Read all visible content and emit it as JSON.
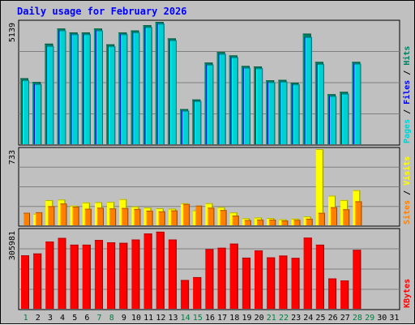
{
  "chart_data": {
    "type": "bar",
    "title": "Daily usage for February 2026",
    "x": [
      "1",
      "2",
      "3",
      "4",
      "5",
      "6",
      "7",
      "8",
      "9",
      "10",
      "11",
      "12",
      "13",
      "14",
      "15",
      "16",
      "17",
      "18",
      "19",
      "20",
      "21",
      "22",
      "23",
      "24",
      "25",
      "26",
      "27",
      "28",
      "29",
      "30",
      "31"
    ],
    "weekend_days": [
      "1",
      "7",
      "8",
      "14",
      "15",
      "21",
      "22",
      "28",
      "29"
    ],
    "panels": [
      {
        "name": "hits-files-pages",
        "max_label": "5139",
        "ymax": 5139,
        "ylabel_parts": [
          {
            "text": "Pages",
            "color": "#00d0d0"
          },
          {
            "text": " / ",
            "color": "#000000"
          },
          {
            "text": "Files",
            "color": "#0000ff"
          },
          {
            "text": " / ",
            "color": "#000000"
          },
          {
            "text": "Hits",
            "color": "#008060"
          }
        ],
        "series": [
          {
            "name": "Hits",
            "color": "#008060",
            "values": [
              2790,
              2630,
              4230,
              4860,
              4700,
              4700,
              4860,
              4200,
              4700,
              4780,
              5000,
              5139,
              4450,
              1500,
              1900,
              3440,
              3880,
              3740,
              3300,
              3280,
              2700,
              2720,
              2600,
              4650,
              3470,
              2120,
              2220,
              3470,
              0,
              0,
              0
            ]
          },
          {
            "name": "Files",
            "color": "#0000ff",
            "values": [
              2700,
              2540,
              4130,
              4780,
              4620,
              4620,
              4780,
              4120,
              4620,
              4700,
              4920,
              5060,
              4370,
              1430,
              1830,
              3350,
              3800,
              3660,
              3220,
              3200,
              2620,
              2640,
              2530,
              4500,
              3380,
              2040,
              2140,
              3390,
              0,
              0,
              0
            ]
          },
          {
            "name": "Pages",
            "color": "#00d0d0",
            "values": [
              2700,
              2540,
              4130,
              4780,
              4620,
              4620,
              4780,
              4120,
              4620,
              4700,
              4920,
              5060,
              4370,
              1430,
              1830,
              3350,
              3800,
              3660,
              3220,
              3200,
              2620,
              2640,
              2530,
              4500,
              3380,
              2040,
              2140,
              3390,
              0,
              0,
              0
            ]
          }
        ]
      },
      {
        "name": "visits-sites",
        "max_label": "733",
        "ymax": 733,
        "ylabel_parts": [
          {
            "text": "Sites",
            "color": "#ff8000"
          },
          {
            "text": " / ",
            "color": "#000000"
          },
          {
            "text": "Visits",
            "color": "#ffff00"
          }
        ],
        "series": [
          {
            "name": "Visits",
            "color": "#ffff00",
            "values": [
              0,
              118,
              247,
              253,
              195,
              225,
              228,
              230,
              257,
              187,
              177,
              170,
              166,
              218,
              150,
              218,
              180,
              130,
              75,
              82,
              77,
              65,
              71,
              93,
              733,
              290,
              248,
              342,
              0,
              0,
              0
            ]
          },
          {
            "name": "Sites",
            "color": "#ff8000",
            "values": [
              127,
              132,
              190,
              215,
              185,
              165,
              175,
              168,
              172,
              163,
              147,
              140,
              149,
              210,
              195,
              175,
              153,
              100,
              58,
              62,
              62,
              53,
              59,
              70,
              126,
              180,
              160,
              236,
              0,
              0,
              0
            ]
          }
        ]
      },
      {
        "name": "kbytes",
        "max_label": "305981",
        "ymax": 305981,
        "ylabel_parts": [
          {
            "text": "KBytes",
            "color": "#ff0000"
          }
        ],
        "series": [
          {
            "name": "KBytes",
            "color": "#ff0000",
            "values": [
              209000,
              216000,
              262000,
              276000,
              250000,
              250000,
              268000,
              259000,
              257000,
              270000,
              293000,
              300000,
              270000,
              114000,
              125000,
              233000,
              238000,
              254000,
              200000,
              228000,
              201000,
              208000,
              199000,
              277000,
              250000,
              120000,
              112000,
              230000,
              0,
              0,
              0
            ]
          }
        ]
      }
    ]
  }
}
